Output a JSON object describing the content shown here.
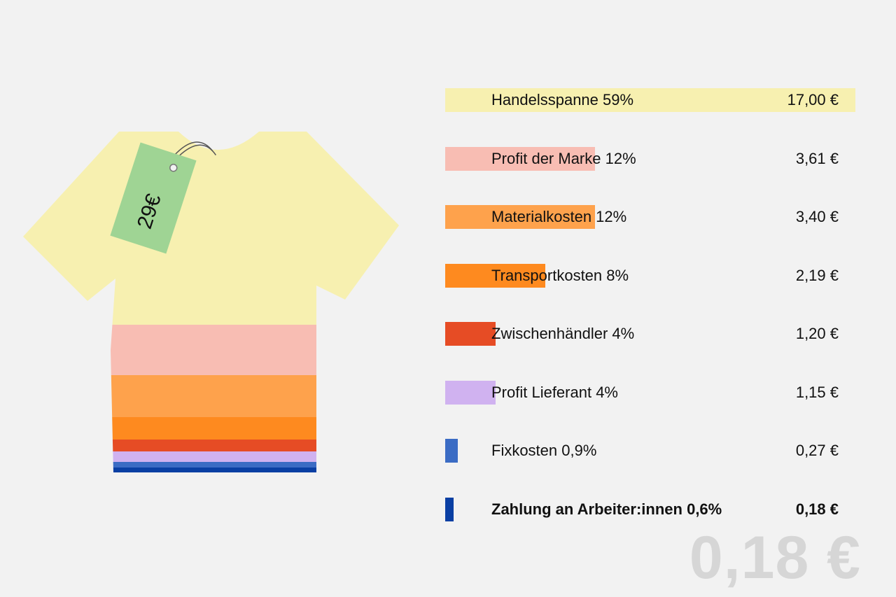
{
  "price_tag": "29€",
  "highlight_total": "0,18 €",
  "chart_data": {
    "type": "bar",
    "orientation": "horizontal",
    "total": 29,
    "unit": "€",
    "series": [
      {
        "key": "handelsspanne",
        "label": "Handelsspanne 59%",
        "share": 59,
        "value_text": "17,00 €",
        "value": 17.0,
        "color": "#f7f0b0",
        "bold": false
      },
      {
        "key": "profit-marke",
        "label": "Profit der Marke 12%",
        "share": 12,
        "value_text": "3,61 €",
        "value": 3.61,
        "color": "#f8bdb3",
        "bold": false
      },
      {
        "key": "materialkosten",
        "label": "Materialkosten 12%",
        "share": 12,
        "value_text": "3,40 €",
        "value": 3.4,
        "color": "#fea24c",
        "bold": false
      },
      {
        "key": "transportkosten",
        "label": "Transportkosten 8%",
        "share": 8,
        "value_text": "2,19 €",
        "value": 2.19,
        "color": "#fe8a1f",
        "bold": false
      },
      {
        "key": "zwischenhaendler",
        "label": "Zwischenhändler 4%",
        "share": 4,
        "value_text": "1,20 €",
        "value": 1.2,
        "color": "#e64c25",
        "bold": false
      },
      {
        "key": "profit-lieferant",
        "label": "Profit Lieferant 4%",
        "share": 4,
        "value_text": "1,15 €",
        "value": 1.15,
        "color": "#d0b2f0",
        "bold": false
      },
      {
        "key": "fixkosten",
        "label": "Fixkosten 0,9%",
        "share": 0.9,
        "value_text": "0,27 €",
        "value": 0.27,
        "color": "#3b6cc4",
        "bold": false
      },
      {
        "key": "arbeiter",
        "label": "Zahlung an Arbeiter:innen 0,6%",
        "share": 0.6,
        "value_text": "0,18 €",
        "value": 0.18,
        "color": "#0a3fa3",
        "bold": true
      }
    ]
  }
}
